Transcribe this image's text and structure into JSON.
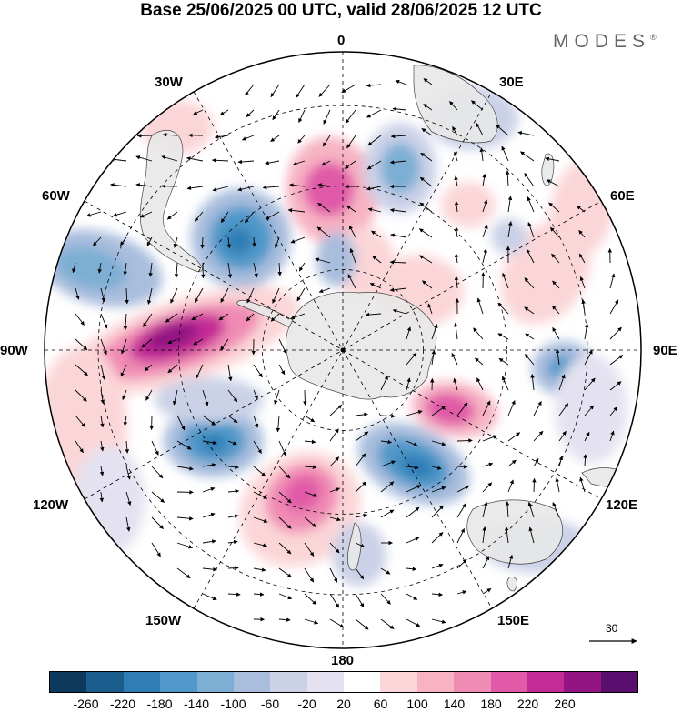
{
  "header": {
    "title": "Base 25/06/2025 00 UTC, valid 28/06/2025 12 UTC",
    "brand": "MODES"
  },
  "longitude_labels": {
    "lon_0": "0",
    "lon_30e": "30E",
    "lon_60e": "60E",
    "lon_90e": "90E",
    "lon_120e": "120E",
    "lon_150e": "150E",
    "lon_180": "180",
    "lon_150w": "150W",
    "lon_120w": "120W",
    "lon_90w": "90W",
    "lon_60w": "60W",
    "lon_30w": "30W"
  },
  "wind_reference_vector": {
    "label": "30"
  },
  "colorbar": {
    "ticks": [
      "-260",
      "-220",
      "-180",
      "-140",
      "-100",
      "-60",
      "-20",
      "20",
      "60",
      "100",
      "140",
      "180",
      "220",
      "260"
    ],
    "colors": [
      "#0d3a5c",
      "#1b5d8d",
      "#2f7db5",
      "#4f98c9",
      "#7daed4",
      "#a9bddd",
      "#cbd1e7",
      "#e4e2f0",
      "#ffffff",
      "#fbd6d8",
      "#f7b3c3",
      "#f08bb4",
      "#e05aa7",
      "#c52b96",
      "#931584",
      "#5a0f6e"
    ]
  },
  "map": {
    "projection": "south-polar-stereographic",
    "ocean_color": "#ffffff",
    "land_color": "#e8e8e8"
  }
}
